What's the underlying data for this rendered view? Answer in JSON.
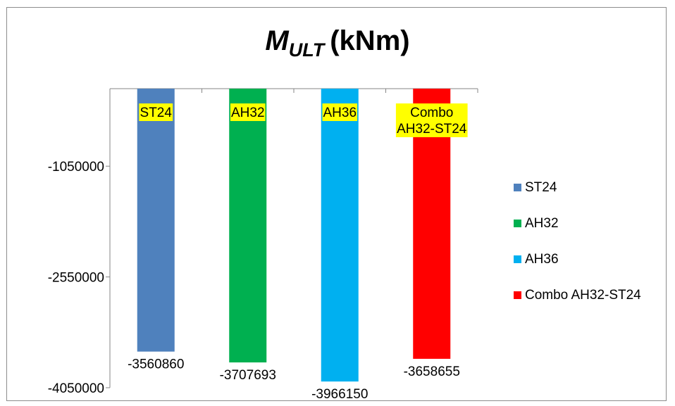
{
  "title": {
    "main": "M",
    "subscript": "ULT",
    "unit": "(kNm)"
  },
  "chart_data": {
    "type": "bar",
    "categories": [
      "ST24",
      "AH32",
      "AH36",
      "Combo AH32-ST24"
    ],
    "category_label_lines": [
      [
        "ST24"
      ],
      [
        "AH32"
      ],
      [
        "AH36"
      ],
      [
        "Combo",
        "AH32-ST24"
      ]
    ],
    "values": [
      -3560860,
      -3707693,
      -3966150,
      -3658655
    ],
    "value_labels": [
      "-3560860",
      "-3707693",
      "-3966150",
      "-3658655"
    ],
    "colors": [
      "#4f81bd",
      "#00b050",
      "#00b0f0",
      "#ff0000"
    ],
    "category_label_background": "#ffff00",
    "y_ticks": [
      -1050000,
      -2550000,
      -4050000
    ],
    "y_tick_labels": [
      "-1050000",
      "-2550000",
      "-4050000"
    ],
    "ylim": [
      -4050000,
      0
    ],
    "grid": false,
    "legend_position": "right",
    "xlabel": "",
    "ylabel": ""
  }
}
